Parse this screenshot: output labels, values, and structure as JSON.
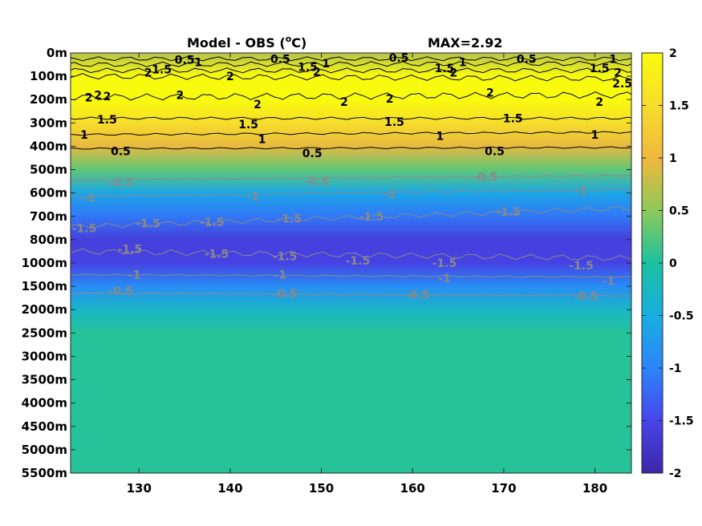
{
  "chart_data": {
    "type": "heatmap",
    "title_left": "Model - OBS (",
    "title_unit_sup": "o",
    "title_unit_after": "C)",
    "title_right": "MAX=2.92",
    "x_ticks": [
      "130",
      "140",
      "150",
      "160",
      "170",
      "180"
    ],
    "x_tick_values": [
      130,
      140,
      150,
      160,
      170,
      180
    ],
    "xlim": [
      122.5,
      184
    ],
    "y_ticks": [
      "0m",
      "100m",
      "200m",
      "300m",
      "400m",
      "500m",
      "600m",
      "700m",
      "800m",
      "1000m",
      "1500m",
      "2000m",
      "2500m",
      "3000m",
      "3500m",
      "4000m",
      "4500m",
      "5000m",
      "5500m"
    ],
    "colorbar_ticks": [
      "2",
      "1.5",
      "1",
      "0.5",
      "0",
      "-0.5",
      "-1",
      "-1.5",
      "-2"
    ],
    "colorbar_values": [
      2,
      1.5,
      1,
      0.5,
      0,
      -0.5,
      -1,
      -1.5,
      -2
    ],
    "clim": [
      -2,
      2
    ],
    "colormap": [
      "#3e26a8",
      "#4745e9",
      "#2c85fa",
      "#17afe0",
      "#1bc1a0",
      "#8ec959",
      "#f1b73e",
      "#f7dd2b",
      "#f9fb0e"
    ],
    "profile_levels": [
      0,
      1,
      2,
      3,
      4,
      5,
      6,
      7,
      8,
      9,
      10,
      11,
      12,
      18
    ],
    "profile_values": [
      0.7,
      2.6,
      2.2,
      1.5,
      0.95,
      0.3,
      -0.6,
      -1.1,
      -1.6,
      -1.55,
      -0.9,
      -0.3,
      0.05,
      0.05
    ],
    "contour_labels_black": [
      {
        "text": "0.5",
        "lon": 135.0,
        "level": 0.3
      },
      {
        "text": "1",
        "lon": 136.5,
        "level": 0.4
      },
      {
        "text": "1.5",
        "lon": 132.5,
        "level": 0.7
      },
      {
        "text": "2",
        "lon": 131.0,
        "level": 0.85
      },
      {
        "text": "2",
        "lon": 124.5,
        "level": 1.9
      },
      {
        "text": "2",
        "lon": 125.5,
        "level": 1.8
      },
      {
        "text": "2",
        "lon": 126.5,
        "level": 1.85
      },
      {
        "text": "2",
        "lon": 134.5,
        "level": 1.8
      },
      {
        "text": "2",
        "lon": 140.0,
        "level": 1.0
      },
      {
        "text": "0.5",
        "lon": 145.5,
        "level": 0.25
      },
      {
        "text": "1.5",
        "lon": 148.5,
        "level": 0.6
      },
      {
        "text": "2",
        "lon": 149.5,
        "level": 0.8
      },
      {
        "text": "1",
        "lon": 150.5,
        "level": 0.45
      },
      {
        "text": "2",
        "lon": 143.0,
        "level": 2.2
      },
      {
        "text": "2",
        "lon": 152.5,
        "level": 2.1
      },
      {
        "text": "0.5",
        "lon": 158.5,
        "level": 0.2
      },
      {
        "text": "1.5",
        "lon": 163.5,
        "level": 0.65
      },
      {
        "text": "2",
        "lon": 164.5,
        "level": 0.85
      },
      {
        "text": "1",
        "lon": 165.5,
        "level": 0.4
      },
      {
        "text": "0.5",
        "lon": 172.5,
        "level": 0.25
      },
      {
        "text": "2",
        "lon": 157.5,
        "level": 1.95
      },
      {
        "text": "2",
        "lon": 168.5,
        "level": 1.7
      },
      {
        "text": "2",
        "lon": 180.5,
        "level": 2.1
      },
      {
        "text": "1.5",
        "lon": 180.5,
        "level": 0.65
      },
      {
        "text": "1",
        "lon": 182.0,
        "level": 0.25
      },
      {
        "text": "2",
        "lon": 182.5,
        "level": 0.85
      },
      {
        "text": "2.5",
        "lon": 183.0,
        "level": 1.3
      },
      {
        "text": "1.5",
        "lon": 126.5,
        "level": 2.85
      },
      {
        "text": "1",
        "lon": 124.0,
        "level": 3.5
      },
      {
        "text": "0.5",
        "lon": 128.0,
        "level": 4.2
      },
      {
        "text": "1.5",
        "lon": 142.0,
        "level": 3.05
      },
      {
        "text": "1",
        "lon": 143.5,
        "level": 3.7
      },
      {
        "text": "0.5",
        "lon": 149.0,
        "level": 4.3
      },
      {
        "text": "1.5",
        "lon": 158.0,
        "level": 2.95
      },
      {
        "text": "1",
        "lon": 163.0,
        "level": 3.55
      },
      {
        "text": "0.5",
        "lon": 169.0,
        "level": 4.2
      },
      {
        "text": "1.5",
        "lon": 171.0,
        "level": 2.8
      },
      {
        "text": "1",
        "lon": 180.0,
        "level": 3.5
      }
    ],
    "contour_labels_grey": [
      {
        "text": "-0.5",
        "lon": 128.0,
        "level": 5.55
      },
      {
        "text": "-1",
        "lon": 124.5,
        "level": 6.2
      },
      {
        "text": "-1.5",
        "lon": 124.0,
        "level": 7.5
      },
      {
        "text": "-1.5",
        "lon": 131.0,
        "level": 7.3
      },
      {
        "text": "-1.5",
        "lon": 129.0,
        "level": 8.4
      },
      {
        "text": "-0.5",
        "lon": 149.5,
        "level": 5.5
      },
      {
        "text": "-1",
        "lon": 142.5,
        "level": 6.15
      },
      {
        "text": "-1.5",
        "lon": 138.0,
        "level": 7.25
      },
      {
        "text": "-1.5",
        "lon": 146.5,
        "level": 7.1
      },
      {
        "text": "-1.5",
        "lon": 138.5,
        "level": 8.6
      },
      {
        "text": "-1.5",
        "lon": 146.0,
        "level": 8.7
      },
      {
        "text": "-1.5",
        "lon": 154.0,
        "level": 8.9
      },
      {
        "text": "-1",
        "lon": 145.5,
        "level": 9.5
      },
      {
        "text": "-0.5",
        "lon": 146.0,
        "level": 10.3
      },
      {
        "text": "-0.5",
        "lon": 128.0,
        "level": 10.2
      },
      {
        "text": "-1",
        "lon": 129.5,
        "level": 9.5
      },
      {
        "text": "-1.5",
        "lon": 155.5,
        "level": 7.0
      },
      {
        "text": "-1",
        "lon": 157.5,
        "level": 6.05
      },
      {
        "text": "-0.5",
        "lon": 168.0,
        "level": 5.3
      },
      {
        "text": "-1.5",
        "lon": 170.5,
        "level": 6.8
      },
      {
        "text": "-1",
        "lon": 178.5,
        "level": 5.9
      },
      {
        "text": "-1.5",
        "lon": 163.5,
        "level": 9.0
      },
      {
        "text": "-1",
        "lon": 163.5,
        "level": 9.65
      },
      {
        "text": "-0.5",
        "lon": 160.5,
        "level": 10.35
      },
      {
        "text": "-1.5",
        "lon": 178.5,
        "level": 9.1
      },
      {
        "text": "-1",
        "lon": 181.5,
        "level": 9.75
      },
      {
        "text": "-0.5",
        "lon": 179.0,
        "level": 10.4
      }
    ]
  }
}
